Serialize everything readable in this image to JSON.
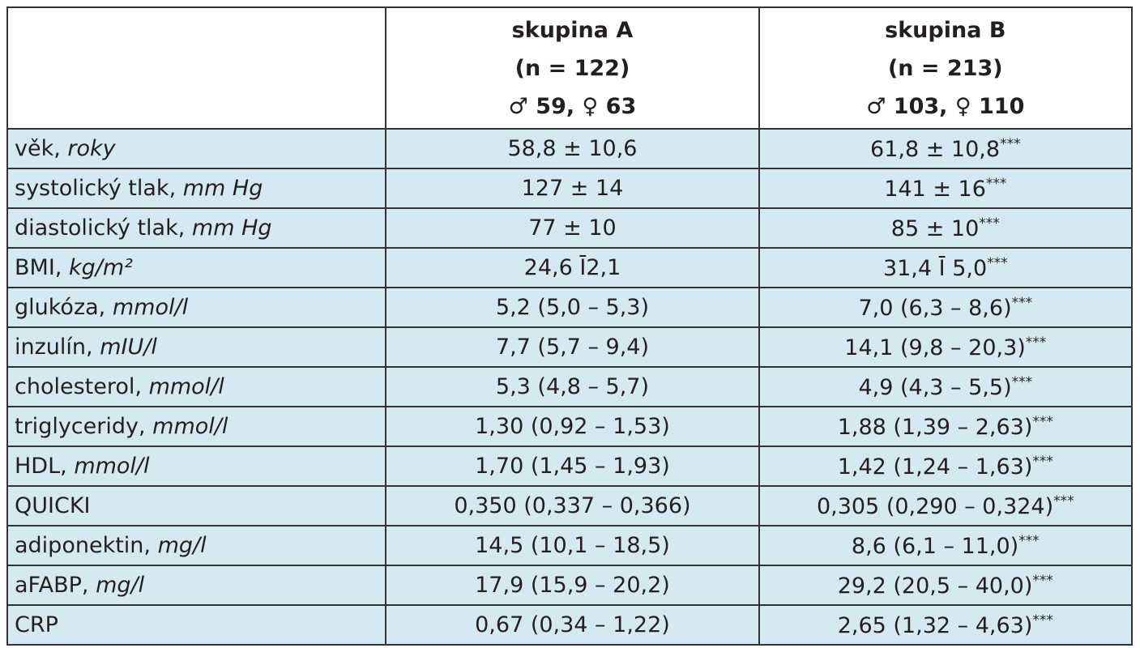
{
  "header": {
    "group_a": {
      "name": "skupina A",
      "n": "(n = 122)",
      "sex": "♂ 59, ♀ 63"
    },
    "group_b": {
      "name": "skupina B",
      "n": "(n = 213)",
      "sex": "♂ 103, ♀ 110"
    }
  },
  "table": {
    "rows": [
      {
        "label": "věk,",
        "unit": "roky",
        "a": "58,8 ± 10,6",
        "b": "61,8 ± 10,8",
        "sig": "***"
      },
      {
        "label": "systolický tlak,",
        "unit": "mm Hg",
        "a": "127 ± 14",
        "b": "141 ± 16",
        "sig": "***"
      },
      {
        "label": "diastolický tlak,",
        "unit": "mm Hg",
        "a": "77 ± 10",
        "b": "85 ± 10",
        "sig": "***"
      },
      {
        "label": "BMI,",
        "unit": "kg/m²",
        "a": "24,6 Ī2,1",
        "b": "31,4 Ī 5,0",
        "sig": "***"
      },
      {
        "label": "glukóza,",
        "unit": "mmol/l",
        "a": "5,2 (5,0 – 5,3)",
        "b": "7,0 (6,3 – 8,6)",
        "sig": "***"
      },
      {
        "label": "inzulín,",
        "unit": "mIU/l",
        "a": "7,7 (5,7 – 9,4)",
        "b": "14,1 (9,8 – 20,3)",
        "sig": "***"
      },
      {
        "label": "cholesterol,",
        "unit": "mmol/l",
        "a": "5,3 (4,8 – 5,7)",
        "b": "4,9 (4,3 – 5,5)",
        "sig": "***"
      },
      {
        "label": "triglyceridy,",
        "unit": "mmol/l",
        "a": "1,30 (0,92 – 1,53)",
        "b": "1,88 (1,39 – 2,63)",
        "sig": "***"
      },
      {
        "label": "HDL,",
        "unit": "mmol/l",
        "a": "1,70 (1,45 – 1,93)",
        "b": "1,42 (1,24 – 1,63)",
        "sig": "***"
      },
      {
        "label": "QUICKI",
        "a": "0,350 (0,337 – 0,366)",
        "b": "0,305 (0,290 – 0,324)",
        "sig": "***"
      },
      {
        "label": "adiponektin,",
        "unit": "mg/l",
        "a": "14,5 (10,1 – 18,5)",
        "b": "8,6 (6,1 – 11,0)",
        "sig": "***"
      },
      {
        "label": "aFABP,",
        "unit": "mg/l",
        "a": "17,9 (15,9 – 20,2)",
        "b": "29,2 (20,5 – 40,0)",
        "sig": "***"
      },
      {
        "label": "CRP",
        "a": "0,67 (0,34 – 1,22)",
        "b": "2,65 (1,32 – 4,63)",
        "sig": "***"
      }
    ]
  }
}
